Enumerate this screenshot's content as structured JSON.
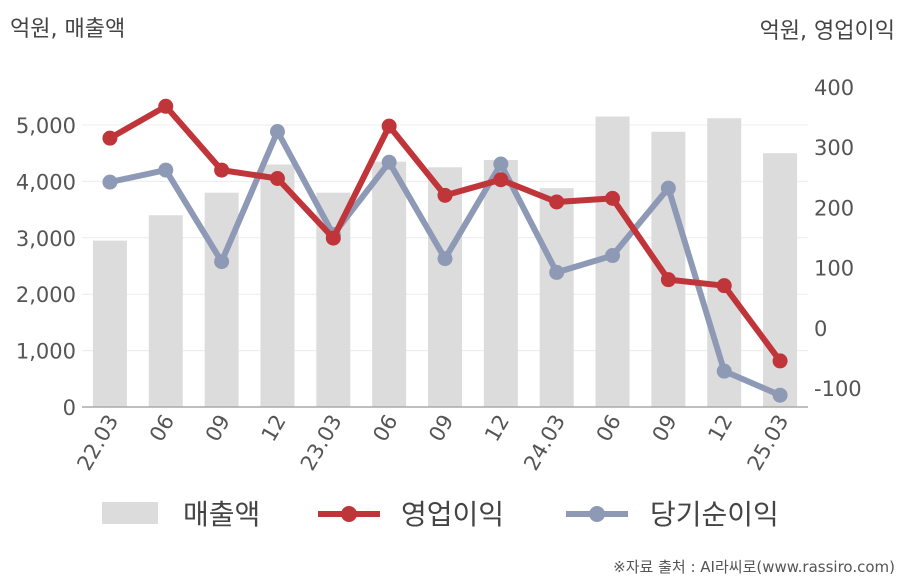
{
  "chart_data": {
    "type": "bar",
    "categories": [
      "22.03",
      "06",
      "09",
      "12",
      "23.03",
      "06",
      "09",
      "12",
      "24.03",
      "06",
      "09",
      "12",
      "25.03"
    ],
    "left_axis": {
      "unit_label": "억원, 매출액",
      "ylim": [
        0,
        5000
      ],
      "ticks": [
        0,
        1000,
        2000,
        3000,
        4000,
        5000
      ],
      "tick_labels": [
        "0",
        "1,000",
        "2,000",
        "3,000",
        "4,000",
        "5,000"
      ]
    },
    "right_axis": {
      "unit_label": "억원, 영업이익",
      "ylim": [
        -100,
        400
      ],
      "ticks": [
        -100,
        0,
        100,
        200,
        300,
        400
      ],
      "tick_labels": [
        "-100",
        "0",
        "100",
        "200",
        "300",
        "400"
      ]
    },
    "series": [
      {
        "name": "매출액",
        "type": "bar",
        "axis": "left",
        "color": "#dcdcdc",
        "values": [
          2950,
          3400,
          3800,
          4300,
          3800,
          4350,
          4250,
          4380,
          3880,
          5150,
          4880,
          5120,
          4500
        ]
      },
      {
        "name": "영업이익",
        "type": "line",
        "axis": "right",
        "color": "#c0353a",
        "values": [
          315,
          368,
          262,
          248,
          149,
          335,
          220,
          246,
          209,
          215,
          80,
          70,
          -55
        ]
      },
      {
        "name": "당기순이익",
        "type": "line",
        "axis": "right",
        "color": "#8e9ab5",
        "values": [
          242,
          262,
          110,
          326,
          155,
          275,
          115,
          272,
          92,
          120,
          232,
          -72,
          -112
        ]
      }
    ],
    "grid": true,
    "legend_position": "bottom"
  },
  "source_text": "※자료 출처 : AI라씨로(www.rassiro.com)"
}
